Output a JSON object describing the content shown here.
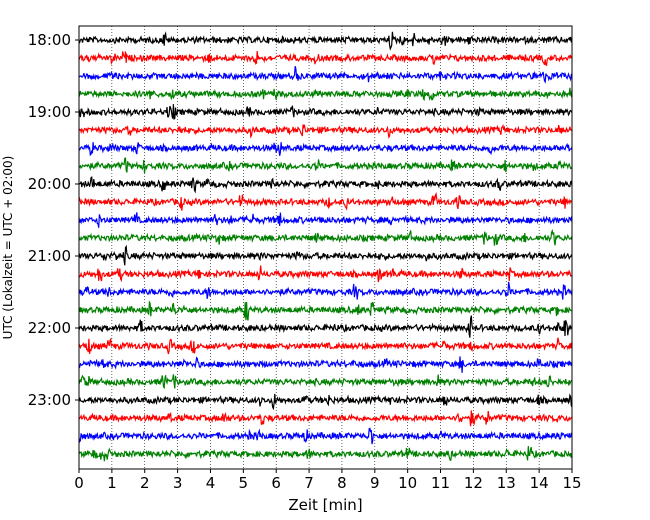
{
  "chart_data": {
    "type": "line",
    "title": "",
    "xlabel": "Zeit  [min]",
    "ylabel": "UTC (Lokalzeit = UTC + 02:00)",
    "xlim": [
      0,
      15
    ],
    "x_ticks": [
      0,
      1,
      2,
      3,
      4,
      5,
      6,
      7,
      8,
      9,
      10,
      11,
      12,
      13,
      14,
      15
    ],
    "y_tick_labels": [
      "18:00",
      "19:00",
      "20:00",
      "21:00",
      "22:00",
      "23:00"
    ],
    "grid": "vertical dotted at each minute",
    "trace_start_times": [
      "18:00",
      "18:15",
      "18:30",
      "18:45",
      "19:00",
      "19:15",
      "19:30",
      "19:45",
      "20:00",
      "20:15",
      "20:30",
      "20:45",
      "21:00",
      "21:15",
      "21:30",
      "21:45",
      "22:00",
      "22:15",
      "22:30",
      "22:45",
      "23:00",
      "23:15",
      "23:30",
      "23:45"
    ],
    "trace_colors": [
      "#000000",
      "#ff0000",
      "#0000ff",
      "#008000"
    ]
  }
}
